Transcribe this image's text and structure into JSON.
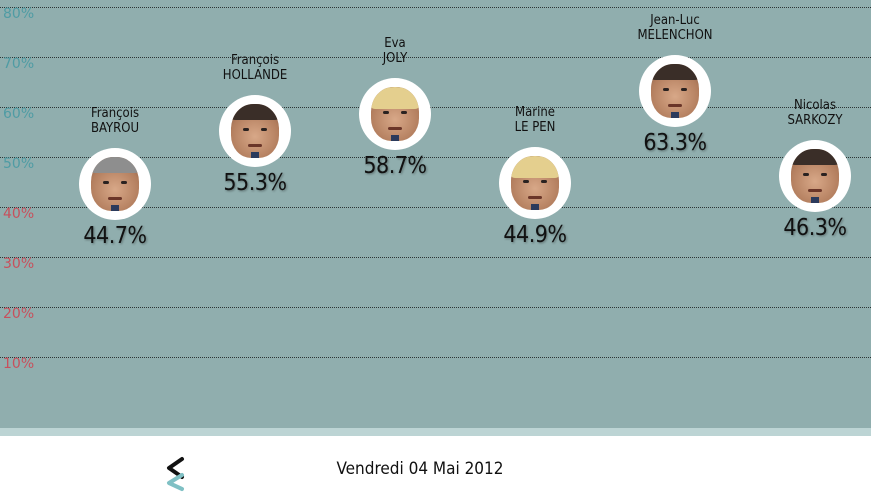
{
  "chart_data": {
    "type": "scatter",
    "ylim": [
      0,
      80
    ],
    "y_ticks": [
      "80%",
      "70%",
      "60%",
      "50%",
      "40%",
      "30%",
      "20%",
      "10%"
    ],
    "tick_values": [
      80,
      70,
      60,
      50,
      40,
      30,
      20,
      10
    ],
    "grid": true,
    "colors": {
      "background": "#90aeae",
      "tick_high": "#4f9ca4",
      "tick_low": "#c8505c",
      "accent": "#7fc0c4"
    },
    "candidates": [
      {
        "first": "François",
        "last": "BAYROU",
        "value": 44.7,
        "label": "44.7%",
        "icon": "bayrou-portrait-icon"
      },
      {
        "first": "François",
        "last": "HOLLANDE",
        "value": 55.3,
        "label": "55.3%",
        "icon": "hollande-portrait-icon"
      },
      {
        "first": "Eva",
        "last": "JOLY",
        "value": 58.7,
        "label": "58.7%",
        "icon": "joly-portrait-icon"
      },
      {
        "first": "Marine",
        "last": "LE PEN",
        "value": 44.9,
        "label": "44.9%",
        "icon": "le-pen-portrait-icon"
      },
      {
        "first": "Jean-Luc",
        "last": "MELENCHON",
        "value": 63.3,
        "label": "63.3%",
        "icon": "melenchon-portrait-icon"
      },
      {
        "first": "Nicolas",
        "last": "SARKOZY",
        "value": 46.3,
        "label": "46.3%",
        "icon": "sarkozy-portrait-icon"
      }
    ]
  },
  "navigation": {
    "date": "Vendredi 04 Mai 2012",
    "prev_icon": "chevron-left-icon"
  }
}
